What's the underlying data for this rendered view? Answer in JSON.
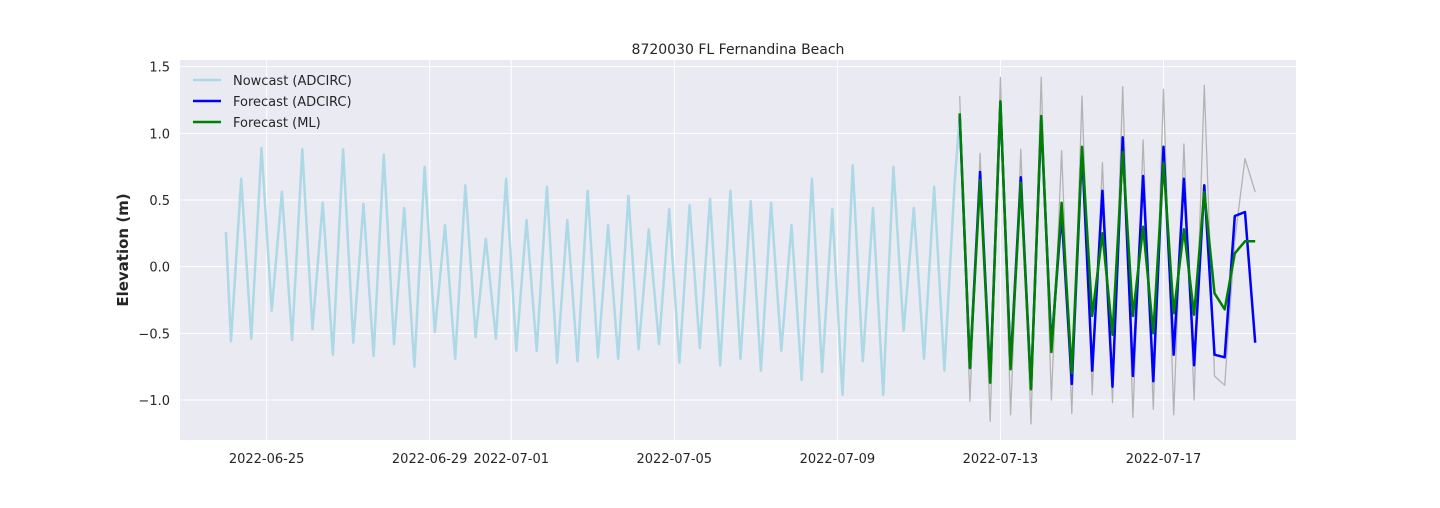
{
  "chart_data": {
    "type": "line",
    "title": "8720030 FL Fernandina Beach",
    "xlabel": "",
    "ylabel": "Elevation (m)",
    "x_ticks": [
      "2022-06-25",
      "2022-06-29",
      "2022-07-01",
      "2022-07-05",
      "2022-07-09",
      "2022-07-13",
      "2022-07-17"
    ],
    "y_ticks": [
      "−1.0",
      "−0.5",
      "0.0",
      "0.5",
      "1.0",
      "1.5"
    ],
    "ylim": [
      -1.3,
      1.55
    ],
    "xlim": [
      "2022-06-22 21:00",
      "2022-07-20 06:00"
    ],
    "grid": true,
    "legend_position": "top-left",
    "series": [
      {
        "name": "Nowcast (ADCIRC)",
        "color": "#add8e6",
        "x": [
          "2022-06-24 00:00",
          "2022-06-24 03:00",
          "2022-06-24 09:00",
          "2022-06-24 15:00",
          "2022-06-24 21:00",
          "2022-06-25 03:00",
          "2022-06-25 09:00",
          "2022-06-25 15:00",
          "2022-06-25 21:00",
          "2022-06-26 03:00",
          "2022-06-26 09:00",
          "2022-06-26 15:00",
          "2022-06-26 21:00",
          "2022-06-27 03:00",
          "2022-06-27 09:00",
          "2022-06-27 15:00",
          "2022-06-27 21:00",
          "2022-06-28 03:00",
          "2022-06-28 09:00",
          "2022-06-28 15:00",
          "2022-06-28 21:00",
          "2022-06-29 03:00",
          "2022-06-29 09:00",
          "2022-06-29 15:00",
          "2022-06-29 21:00",
          "2022-06-30 03:00",
          "2022-06-30 09:00",
          "2022-06-30 15:00",
          "2022-06-30 21:00",
          "2022-07-01 03:00",
          "2022-07-01 09:00",
          "2022-07-01 15:00",
          "2022-07-01 21:00",
          "2022-07-02 03:00",
          "2022-07-02 09:00",
          "2022-07-02 15:00",
          "2022-07-02 21:00",
          "2022-07-03 03:00",
          "2022-07-03 09:00",
          "2022-07-03 15:00",
          "2022-07-03 21:00",
          "2022-07-04 03:00",
          "2022-07-04 09:00",
          "2022-07-04 15:00",
          "2022-07-04 21:00",
          "2022-07-05 03:00",
          "2022-07-05 09:00",
          "2022-07-05 15:00",
          "2022-07-05 21:00",
          "2022-07-06 03:00",
          "2022-07-06 09:00",
          "2022-07-06 15:00",
          "2022-07-06 21:00",
          "2022-07-07 03:00",
          "2022-07-07 09:00",
          "2022-07-07 15:00",
          "2022-07-07 21:00",
          "2022-07-08 03:00",
          "2022-07-08 09:00",
          "2022-07-08 15:00",
          "2022-07-08 21:00",
          "2022-07-09 03:00",
          "2022-07-09 09:00",
          "2022-07-09 15:00",
          "2022-07-09 21:00",
          "2022-07-10 03:00",
          "2022-07-10 09:00",
          "2022-07-10 15:00",
          "2022-07-10 21:00",
          "2022-07-11 03:00",
          "2022-07-11 09:00",
          "2022-07-11 15:00",
          "2022-07-11 21:00",
          "2022-07-12 00:00"
        ],
        "y": [
          0.26,
          -0.56,
          0.66,
          -0.54,
          0.89,
          -0.33,
          0.56,
          -0.55,
          0.88,
          -0.47,
          0.48,
          -0.66,
          0.88,
          -0.57,
          0.47,
          -0.67,
          0.84,
          -0.58,
          0.44,
          -0.75,
          0.75,
          -0.49,
          0.31,
          -0.69,
          0.61,
          -0.53,
          0.21,
          -0.54,
          0.66,
          -0.63,
          0.35,
          -0.63,
          0.6,
          -0.72,
          0.35,
          -0.71,
          0.57,
          -0.68,
          0.31,
          -0.69,
          0.53,
          -0.62,
          0.28,
          -0.58,
          0.43,
          -0.72,
          0.46,
          -0.61,
          0.51,
          -0.74,
          0.57,
          -0.69,
          0.49,
          -0.78,
          0.48,
          -0.63,
          0.31,
          -0.85,
          0.66,
          -0.79,
          0.43,
          -0.96,
          0.76,
          -0.71,
          0.44,
          -0.96,
          0.75,
          -0.48,
          0.44,
          -0.69,
          0.6,
          -0.78,
          0.63,
          1.13
        ]
      },
      {
        "name": "Forecast (ADCIRC)",
        "color": "#0000ff",
        "x": [
          "2022-07-12 00:00",
          "2022-07-12 06:00",
          "2022-07-12 12:00",
          "2022-07-12 18:00",
          "2022-07-13 00:00",
          "2022-07-13 06:00",
          "2022-07-13 12:00",
          "2022-07-13 18:00",
          "2022-07-14 00:00",
          "2022-07-14 06:00",
          "2022-07-14 12:00",
          "2022-07-14 18:00",
          "2022-07-15 00:00",
          "2022-07-15 06:00",
          "2022-07-15 12:00",
          "2022-07-15 18:00",
          "2022-07-16 00:00",
          "2022-07-16 06:00",
          "2022-07-16 12:00",
          "2022-07-16 18:00",
          "2022-07-17 00:00",
          "2022-07-17 06:00",
          "2022-07-17 12:00",
          "2022-07-17 18:00",
          "2022-07-18 00:00",
          "2022-07-18 06:00",
          "2022-07-18 12:00",
          "2022-07-18 18:00",
          "2022-07-19 00:00",
          "2022-07-19 06:00"
        ],
        "y": [
          1.13,
          -0.76,
          0.71,
          -0.85,
          1.23,
          -0.74,
          0.67,
          -0.91,
          1.1,
          -0.6,
          0.4,
          -0.88,
          0.88,
          -0.78,
          0.57,
          -0.9,
          0.97,
          -0.82,
          0.68,
          -0.86,
          0.9,
          -0.66,
          0.66,
          -0.74,
          0.61,
          -0.66,
          -0.68,
          0.38,
          0.41,
          -0.57
        ]
      },
      {
        "name": "Forecast (ML)",
        "color": "#008000",
        "x": [
          "2022-07-12 00:00",
          "2022-07-12 06:00",
          "2022-07-12 12:00",
          "2022-07-12 18:00",
          "2022-07-13 00:00",
          "2022-07-13 06:00",
          "2022-07-13 12:00",
          "2022-07-13 18:00",
          "2022-07-14 00:00",
          "2022-07-14 06:00",
          "2022-07-14 12:00",
          "2022-07-14 18:00",
          "2022-07-15 00:00",
          "2022-07-15 06:00",
          "2022-07-15 12:00",
          "2022-07-15 18:00",
          "2022-07-16 00:00",
          "2022-07-16 06:00",
          "2022-07-16 12:00",
          "2022-07-16 18:00",
          "2022-07-17 00:00",
          "2022-07-17 06:00",
          "2022-07-17 12:00",
          "2022-07-17 18:00",
          "2022-07-18 00:00",
          "2022-07-18 06:00",
          "2022-07-18 12:00",
          "2022-07-18 18:00",
          "2022-07-19 00:00",
          "2022-07-19 06:00"
        ],
        "y": [
          1.15,
          -0.76,
          0.65,
          -0.87,
          1.24,
          -0.77,
          0.63,
          -0.92,
          1.13,
          -0.64,
          0.48,
          -0.8,
          0.9,
          -0.37,
          0.25,
          -0.51,
          0.86,
          -0.37,
          0.3,
          -0.5,
          0.78,
          -0.35,
          0.28,
          -0.36,
          0.56,
          -0.2,
          -0.32,
          0.1,
          0.19,
          0.19
        ]
      },
      {
        "name": "",
        "color": "#b0b0b0",
        "x": [
          "2022-07-12 00:00",
          "2022-07-12 06:00",
          "2022-07-12 12:00",
          "2022-07-12 18:00",
          "2022-07-13 00:00",
          "2022-07-13 06:00",
          "2022-07-13 12:00",
          "2022-07-13 18:00",
          "2022-07-14 00:00",
          "2022-07-14 06:00",
          "2022-07-14 12:00",
          "2022-07-14 18:00",
          "2022-07-15 00:00",
          "2022-07-15 06:00",
          "2022-07-15 12:00",
          "2022-07-15 18:00",
          "2022-07-16 00:00",
          "2022-07-16 06:00",
          "2022-07-16 12:00",
          "2022-07-16 18:00",
          "2022-07-17 00:00",
          "2022-07-17 06:00",
          "2022-07-17 12:00",
          "2022-07-17 18:00",
          "2022-07-18 00:00",
          "2022-07-18 06:00",
          "2022-07-18 12:00",
          "2022-07-18 18:00",
          "2022-07-19 00:00",
          "2022-07-19 06:00"
        ],
        "y": [
          1.28,
          -1.01,
          0.85,
          -1.16,
          1.42,
          -1.11,
          0.88,
          -1.18,
          1.42,
          -1.0,
          0.87,
          -1.1,
          1.28,
          -0.96,
          0.78,
          -1.02,
          1.35,
          -1.13,
          0.95,
          -1.07,
          1.33,
          -1.11,
          0.92,
          -1.0,
          1.36,
          -0.82,
          -0.89,
          0.2,
          0.81,
          0.56
        ]
      }
    ]
  }
}
